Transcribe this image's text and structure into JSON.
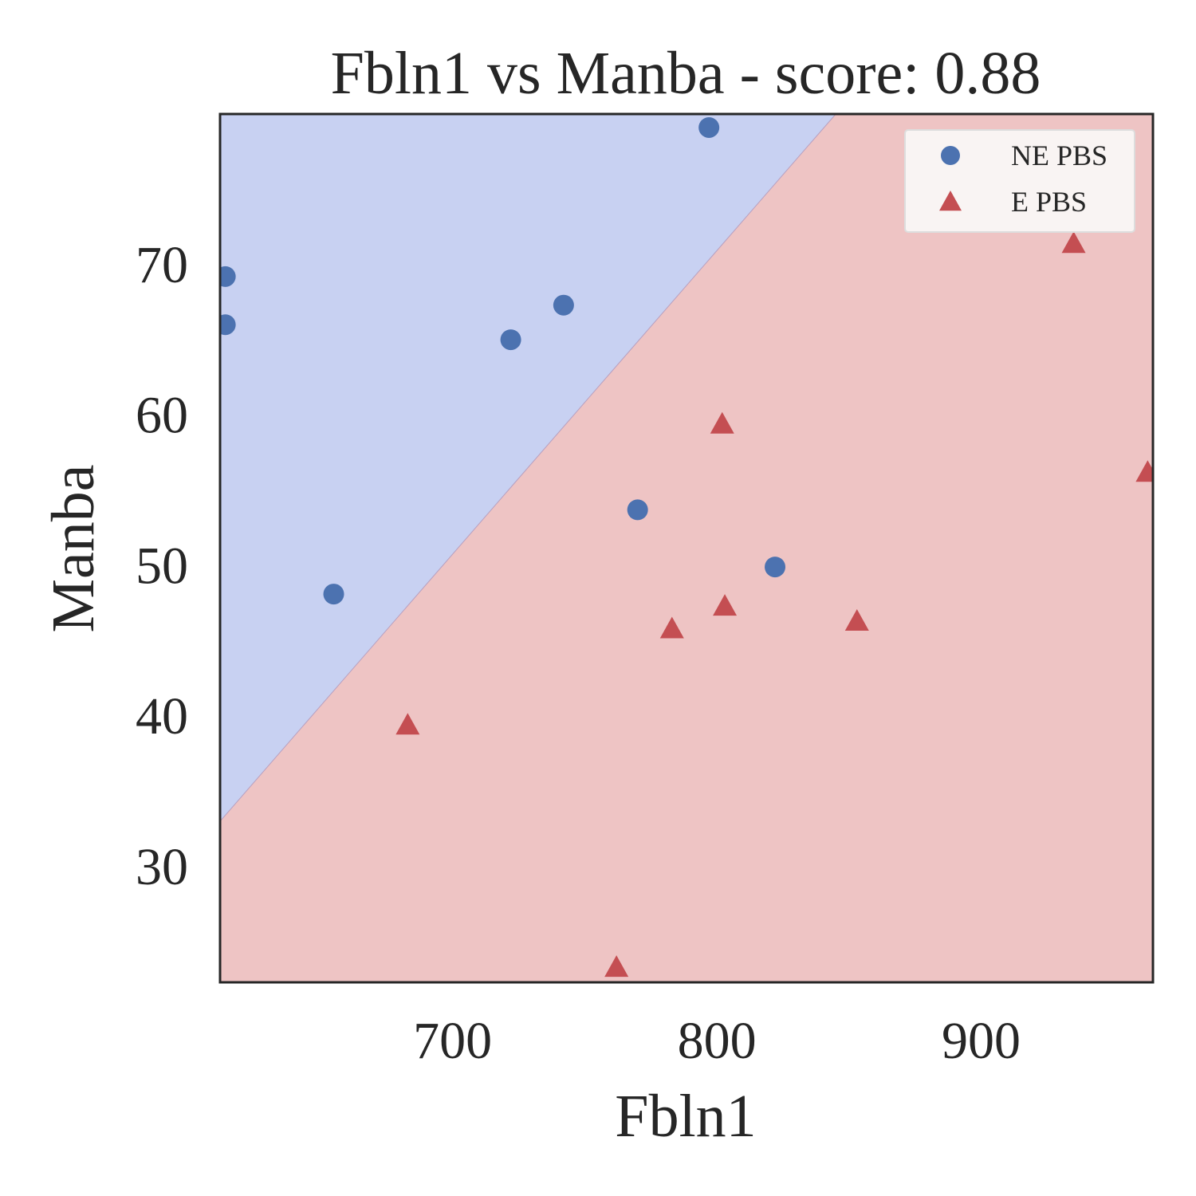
{
  "chart_data": {
    "type": "scatter",
    "title": "Fbln1 vs Manba - score: 0.88",
    "xlabel": "Fbln1",
    "ylabel": "Manba",
    "xlim": [
      612,
      965
    ],
    "ylim": [
      22.2,
      79.9
    ],
    "xticks": [
      700,
      800,
      900
    ],
    "yticks": [
      30,
      40,
      50,
      60,
      70
    ],
    "grid": false,
    "legend_position": "top-right",
    "decision_boundary": {
      "region_above": "NE PBS",
      "region_below": "E PBS",
      "line": [
        [
          612,
          32.9
        ],
        [
          845,
          79.9
        ]
      ]
    },
    "series": [
      {
        "name": "NE PBS",
        "marker": "circle",
        "color": "#4c72b0",
        "points": [
          [
            614,
            69.1
          ],
          [
            614,
            65.9
          ],
          [
            655,
            48.0
          ],
          [
            722,
            64.9
          ],
          [
            742,
            67.2
          ],
          [
            770,
            53.6
          ],
          [
            797,
            79.0
          ],
          [
            822,
            49.8
          ]
        ]
      },
      {
        "name": "E PBS",
        "marker": "triangle",
        "color": "#c44e52",
        "points": [
          [
            683,
            39.3
          ],
          [
            762,
            23.2
          ],
          [
            783,
            45.7
          ],
          [
            802,
            59.3
          ],
          [
            803,
            47.2
          ],
          [
            853,
            46.2
          ],
          [
            935,
            71.3
          ],
          [
            963,
            56.1
          ]
        ]
      }
    ],
    "region_colors": {
      "upper": "#c8d1f2",
      "lower": "#eec4c4"
    },
    "legend_bg": "#f9f4f3"
  }
}
